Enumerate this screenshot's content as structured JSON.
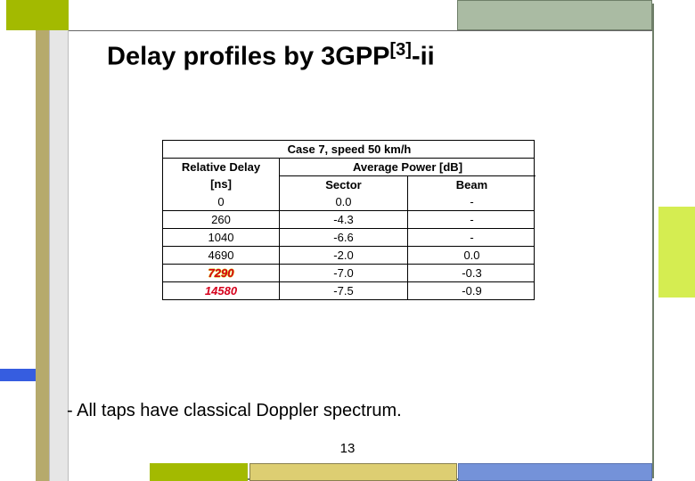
{
  "title_pre": "Delay profiles by 3GPP",
  "title_sup": "[3]",
  "title_post": "-ii",
  "note": "- All taps have classical Doppler spectrum.",
  "page_number": "13",
  "table": {
    "caption": "Case 7, speed 50 km/h",
    "header_col1_line1": "Relative Delay",
    "header_col1_line2": "[ns]",
    "header_col23": "Average Power [dB]",
    "header_col2": "Sector",
    "header_col3": "Beam",
    "rows": [
      {
        "delay": "0",
        "sector": "0.0",
        "beam": "-",
        "hi": false
      },
      {
        "delay": "260",
        "sector": "-4.3",
        "beam": "-",
        "hi": false
      },
      {
        "delay": "1040",
        "sector": "-6.6",
        "beam": "-",
        "hi": false
      },
      {
        "delay": "4690",
        "sector": "-2.0",
        "beam": "0.0",
        "hi": false
      },
      {
        "delay": "7290",
        "sector": "-7.0",
        "beam": "-0.3",
        "hi": true,
        "outline": true
      },
      {
        "delay": "14580",
        "sector": "-7.5",
        "beam": "-0.9",
        "hi": true,
        "outline": false
      }
    ]
  },
  "colors": {
    "olive": "#a3ba00",
    "grey_green": "#aabba3",
    "lime": "#d5ed51",
    "blue": "#365de0",
    "yellow": "#ddce72",
    "lightblue": "#7492d9",
    "red": "#d6001c"
  }
}
